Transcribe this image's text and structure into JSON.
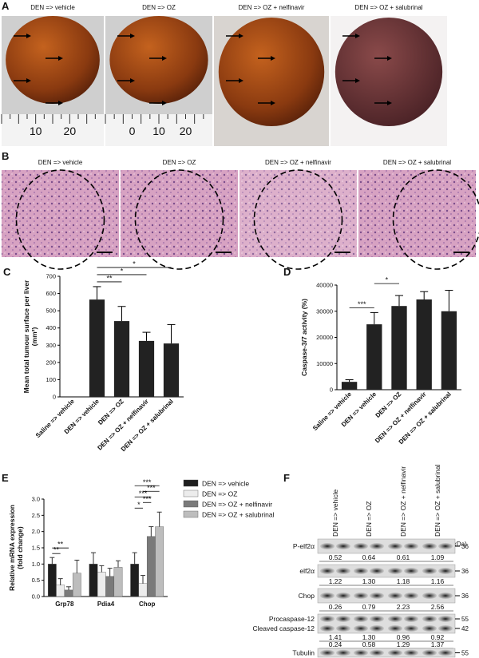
{
  "panel_a": {
    "letter": "A",
    "titles": [
      "DEN => vehicle",
      "DEN => OZ",
      "DEN => OZ + nelfinavir",
      "DEN => OZ + salubrinal"
    ],
    "ruler_labels": [
      [
        "10",
        "20"
      ],
      [
        "0",
        "10",
        "20"
      ]
    ]
  },
  "panel_b": {
    "letter": "B",
    "titles": [
      "DEN => vehicle",
      "DEN => OZ",
      "DEN => OZ + nelfinavir",
      "DEN => OZ + salubrinal"
    ]
  },
  "chart_data": [
    {
      "type": "bar",
      "panel_label": "C",
      "y_label": [
        "Mean total tumour surface per liver",
        "(mm²)"
      ],
      "categories": [
        "Saline => vehicle",
        "DEN => vehicle",
        "DEN => OZ",
        "DEN => OZ + nelfinavir",
        "DEN => OZ + salubrinal"
      ],
      "values": [
        0,
        565,
        440,
        325,
        310
      ],
      "errors": [
        0,
        75,
        85,
        50,
        110
      ],
      "color": "#222222",
      "ylim": [
        0,
        700
      ],
      "yticks": [
        0,
        100,
        200,
        300,
        400,
        500,
        600,
        700
      ],
      "annotations": [
        {
          "text": "**",
          "between": [
            "DEN => vehicle",
            "DEN => OZ"
          ]
        },
        {
          "text": "*",
          "between": [
            "DEN => vehicle",
            "DEN => OZ + nelfinavir"
          ]
        },
        {
          "text": "*",
          "between": [
            "DEN => vehicle",
            "DEN => OZ + salubrinal"
          ]
        }
      ]
    },
    {
      "type": "bar",
      "panel_label": "D",
      "y_label": [
        "Caspase-3/7 activity (%)"
      ],
      "categories": [
        "Saline => vehicle",
        "DEN => vehicle",
        "DEN => OZ",
        "DEN => OZ + nelfinavir",
        "DEN => OZ + salubrinal"
      ],
      "values": [
        3000,
        25000,
        32000,
        34500,
        30000
      ],
      "errors": [
        800,
        4500,
        4000,
        3000,
        8000
      ],
      "color": "#222222",
      "ylim": [
        0,
        40000
      ],
      "yticks": [
        0,
        10000,
        20000,
        30000,
        40000
      ],
      "annotations": [
        {
          "text": "***",
          "between": [
            "Saline => vehicle",
            "DEN => vehicle"
          ]
        },
        {
          "text": "*",
          "between": [
            "DEN => vehicle",
            "DEN => OZ"
          ]
        }
      ]
    },
    {
      "type": "grouped_bar",
      "panel_label": "E",
      "y_label": [
        "Relative mRNA expression",
        "(fold change)"
      ],
      "categories": [
        "Grp78",
        "Pdia4",
        "Chop"
      ],
      "series": [
        {
          "name": "DEN => vehicle",
          "color": "#1e1e1e",
          "values": [
            1.0,
            1.0,
            1.0
          ],
          "errors": [
            0.2,
            0.35,
            0.35
          ]
        },
        {
          "name": "DEN => OZ",
          "color": "#ececec",
          "values": [
            0.35,
            0.75,
            0.4
          ],
          "errors": [
            0.2,
            0.2,
            0.25
          ]
        },
        {
          "name": "DEN => OZ + nelfinavir",
          "color": "#7a7a7a",
          "values": [
            0.2,
            0.62,
            1.85
          ],
          "errors": [
            0.1,
            0.25,
            0.3
          ]
        },
        {
          "name": "DEN => OZ + salubrinal",
          "color": "#bdbdbd",
          "values": [
            0.72,
            0.9,
            2.15
          ],
          "errors": [
            0.4,
            0.2,
            0.45
          ]
        }
      ],
      "ylim": [
        0,
        3.0
      ],
      "yticks": [
        {
          "value": 0,
          "label": "0.0"
        },
        0.5,
        {
          "value": 1,
          "label": "1.0"
        },
        1.5,
        {
          "value": 2,
          "label": "2.0"
        },
        2.5,
        {
          "value": 3,
          "label": "3.0"
        }
      ],
      "annotations": [
        {
          "text": "**",
          "category": "Grp78",
          "between": [
            "DEN => vehicle",
            "DEN => OZ"
          ]
        },
        {
          "text": "**",
          "category": "Grp78",
          "between": [
            "DEN => vehicle",
            "DEN => OZ + nelfinavir"
          ]
        },
        {
          "text": "*",
          "category": "Chop",
          "between": [
            "DEN => vehicle",
            "DEN => OZ"
          ]
        },
        {
          "text": "***",
          "category": "Chop",
          "between": [
            "DEN => OZ",
            "DEN => OZ + nelfinavir"
          ]
        },
        {
          "text": "***",
          "category": "Chop",
          "between": [
            "DEN => vehicle",
            "DEN => OZ + nelfinavir"
          ]
        },
        {
          "text": "***",
          "category": "Chop",
          "between": [
            "DEN => OZ",
            "DEN => OZ + salubrinal"
          ]
        },
        {
          "text": "***",
          "category": "Chop",
          "between": [
            "DEN => vehicle",
            "DEN => OZ + salubrinal"
          ]
        }
      ]
    }
  ],
  "panel_f": {
    "letter": "F",
    "columns": [
      "DEN => vehicle",
      "DEN => OZ",
      "DEN => OZ + nelfinavir",
      "DEN => OZ + salubrinal"
    ],
    "unit": "(kDa)",
    "blots": [
      {
        "labels": [
          "P-elf2α"
        ],
        "markers": [
          "36"
        ],
        "quantification": [
          [
            "0.52",
            "0.64",
            "0.61",
            "1.09"
          ]
        ]
      },
      {
        "labels": [
          "elf2α"
        ],
        "markers": [
          "36"
        ],
        "quantification": [
          [
            "1.22",
            "1.30",
            "1.18",
            "1.16"
          ]
        ]
      },
      {
        "labels": [
          "Chop"
        ],
        "markers": [
          "36"
        ],
        "quantification": [
          [
            "0.26",
            "0.79",
            "2.23",
            "2.56"
          ]
        ]
      },
      {
        "labels": [
          "Procaspase-12",
          "Cleaved caspase-12"
        ],
        "markers": [
          "55",
          "42"
        ],
        "quantification": [
          [
            "1.41",
            "1.30",
            "0.96",
            "0.92"
          ],
          [
            "0.24",
            "0.58",
            "1.29",
            "1.37"
          ]
        ]
      },
      {
        "labels": [
          "Tubulin"
        ],
        "markers": [
          "55"
        ]
      }
    ]
  }
}
